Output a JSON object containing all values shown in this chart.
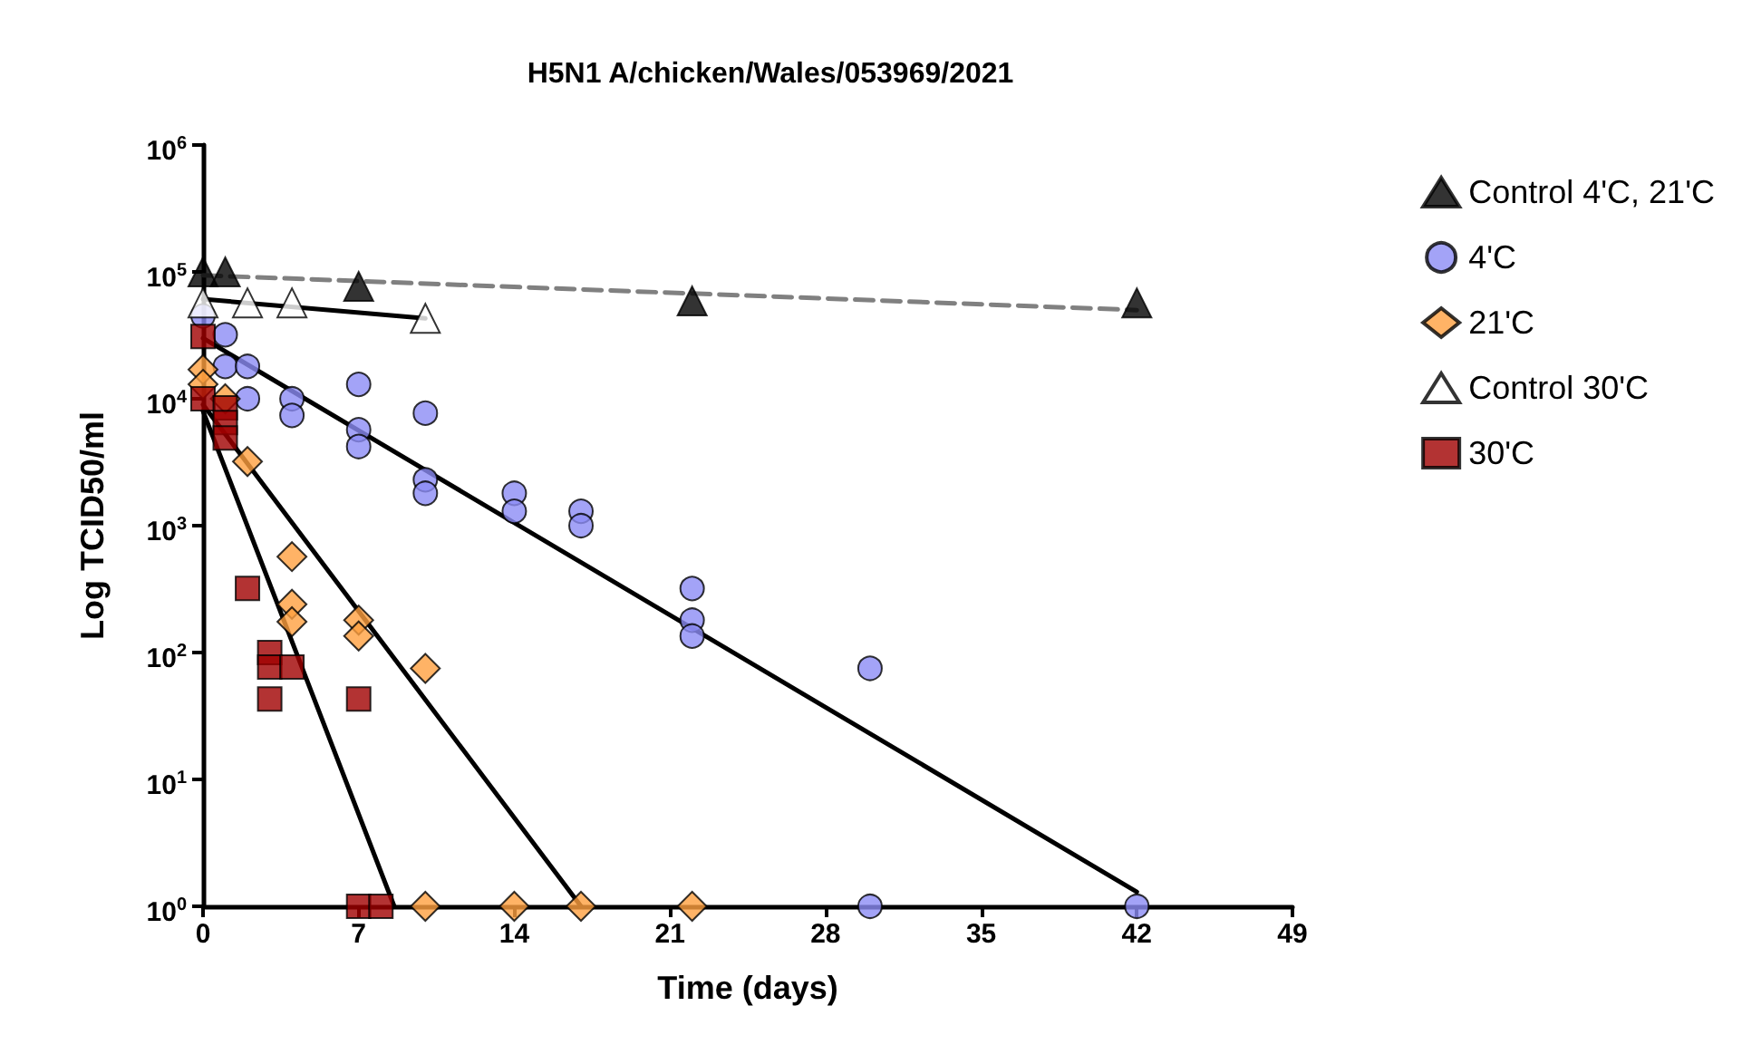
{
  "chart_data": {
    "type": "scatter",
    "title": "H5N1 A/chicken/Wales/053969/2021",
    "xlabel": "Time (days)",
    "ylabel": "Log TCID50/ml",
    "xlim": [
      0,
      49
    ],
    "xticks": [
      0,
      7,
      14,
      21,
      28,
      35,
      42,
      49
    ],
    "ylim": [
      1,
      1000000
    ],
    "yticks": [
      {
        "value": 1,
        "label": "10$^{0}$"
      },
      {
        "value": 10,
        "label": "10$^{1}$"
      },
      {
        "value": 100,
        "label": "10$^{2}$"
      },
      {
        "value": 1000,
        "label": "10$^{3}$"
      },
      {
        "value": 10000,
        "label": "10$^{4}$"
      },
      {
        "value": 100000,
        "label": "10$^{5}$"
      },
      {
        "value": 1000000,
        "label": "10$^{6}$"
      }
    ],
    "log": "y",
    "grid": false,
    "legend": "right",
    "series": [
      {
        "name": "Control 4'C, 21'C",
        "marker": "triangle",
        "color": "#000000",
        "x": [
          0,
          1,
          7,
          22,
          42
        ],
        "values": [
          100000,
          100000,
          77000,
          59000,
          57000
        ]
      },
      {
        "name": "4'C",
        "marker": "circle",
        "color": "#8c8cf5",
        "x": [
          0,
          1,
          1,
          2,
          2,
          4,
          4,
          7,
          7,
          7,
          10,
          10,
          10,
          14,
          14,
          17,
          17,
          22,
          22,
          22,
          30,
          30,
          42
        ],
        "values": [
          45000,
          32000,
          18000,
          18000,
          10000,
          10000,
          7400,
          13000,
          5700,
          4200,
          7700,
          2300,
          1800,
          1800,
          1300,
          1300,
          1000,
          320,
          180,
          135,
          75,
          1,
          1
        ]
      },
      {
        "name": "21'C",
        "marker": "diamond",
        "color": "#ffa040",
        "x": [
          0,
          0,
          1,
          2,
          4,
          4,
          4,
          7,
          7,
          10,
          10,
          14,
          17,
          22
        ],
        "values": [
          17000,
          13000,
          10000,
          3200,
          570,
          240,
          175,
          180,
          135,
          75,
          1,
          1,
          1,
          1
        ]
      },
      {
        "name": "Control 30'C",
        "marker": "triangle",
        "color": "#ffffff",
        "x": [
          0,
          2,
          4,
          10
        ],
        "values": [
          57000,
          57000,
          57000,
          43000
        ]
      },
      {
        "name": "30'C",
        "marker": "square",
        "color": "#a00000",
        "x": [
          0,
          0,
          1,
          1,
          1,
          2,
          3,
          3,
          3,
          4,
          7,
          7,
          8
        ],
        "values": [
          31000,
          10000,
          8500,
          6500,
          4900,
          320,
          100,
          77,
          43,
          77,
          43,
          1,
          1
        ]
      },
      {
        "type": "line",
        "marker": "none",
        "line_style": "dashed",
        "color": "#808080",
        "x": [
          0,
          42
        ],
        "values": [
          94000,
          50000
        ]
      },
      {
        "type": "line",
        "marker": "none",
        "line_style": "solid",
        "color": "#000000",
        "x": [
          0,
          10
        ],
        "values": [
          61000,
          43000
        ]
      },
      {
        "type": "line",
        "marker": "none",
        "line_style": "solid",
        "color": "#000000",
        "x": [
          0,
          42
        ],
        "values": [
          30000,
          1.3
        ]
      },
      {
        "type": "line",
        "marker": "none",
        "line_style": "solid",
        "color": "#000000",
        "x": [
          0,
          17
        ],
        "values": [
          9000,
          1
        ]
      },
      {
        "type": "line",
        "marker": "none",
        "line_style": "solid",
        "color": "#000000",
        "x": [
          0,
          8.6
        ],
        "values": [
          8000,
          1
        ]
      }
    ]
  }
}
